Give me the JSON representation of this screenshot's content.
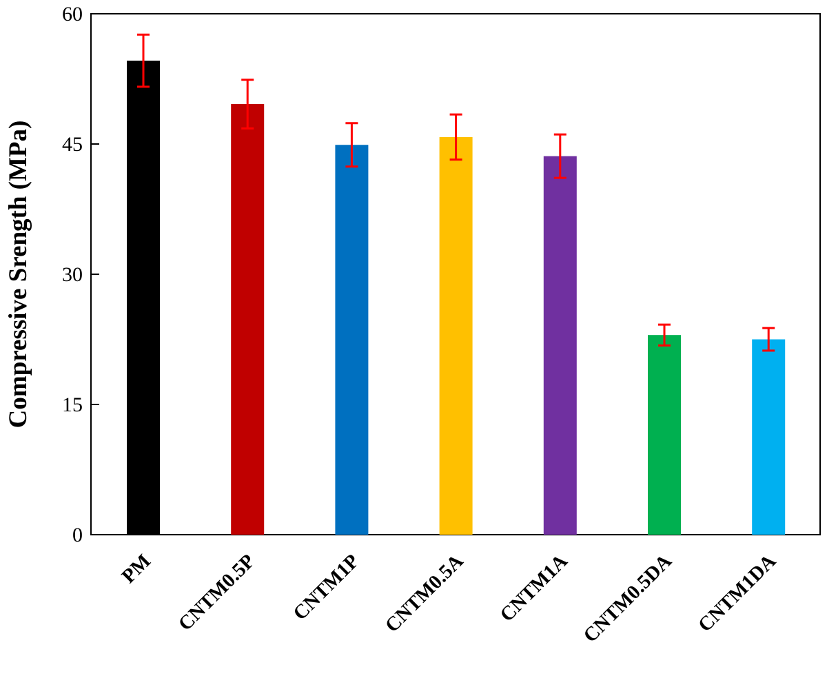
{
  "chart_data": {
    "type": "bar",
    "title": "",
    "xlabel": "",
    "ylabel": "Compressive Srength (MPa)",
    "ylim": [
      0,
      60
    ],
    "yticks": [
      0,
      15,
      30,
      45,
      60
    ],
    "ytick_labels": [
      "0",
      "15",
      "30",
      "45",
      "60"
    ],
    "grid": false,
    "legend": "none",
    "categories": [
      "PM",
      "CNTM0.5P",
      "CNTM1P",
      "CNTM0.5A",
      "CNTM1A",
      "CNTM0.5DA",
      "CNTM1DA"
    ],
    "values": [
      54.6,
      49.6,
      44.9,
      45.8,
      43.6,
      23.0,
      22.5
    ],
    "error": [
      3.0,
      2.8,
      2.5,
      2.6,
      2.5,
      1.2,
      1.3
    ],
    "bar_colors": [
      "#000000",
      "#C00000",
      "#0070C0",
      "#FFC000",
      "#7030A0",
      "#00B050",
      "#00B0F0"
    ],
    "error_bar_color": "#FF0000"
  }
}
